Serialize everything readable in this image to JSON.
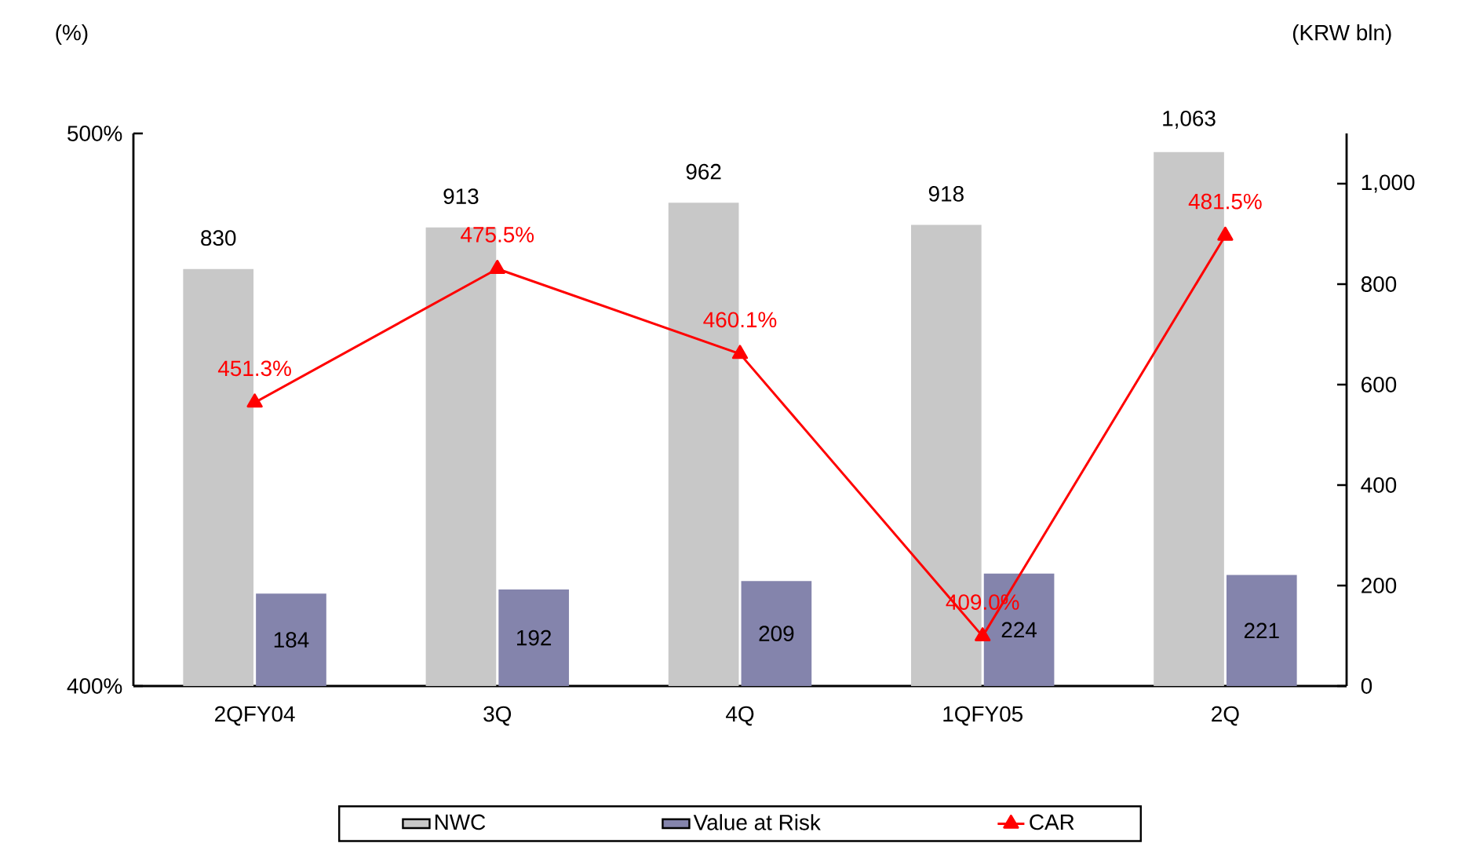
{
  "chart_data": {
    "type": "bar",
    "ylabel": "(%)",
    "y2label": "(KRW bln)",
    "categories": [
      "2QFY04",
      "3Q",
      "4Q",
      "1QFY05",
      "2Q"
    ],
    "ylim": [
      400,
      500
    ],
    "yticks": [
      {
        "value": 400,
        "label": "400%"
      },
      {
        "value": 500,
        "label": "500%"
      }
    ],
    "y2lim": [
      0,
      1100
    ],
    "y2ticks": [
      0,
      200,
      400,
      600,
      800,
      {
        "value": 1000,
        "label": "1,000"
      }
    ],
    "legend": "bottom",
    "series": [
      {
        "name": "NWC",
        "axis": "y2",
        "color": "#c8c8c8",
        "values": [
          830,
          913,
          962,
          918,
          1063
        ],
        "value_labels": [
          "830",
          "913",
          "962",
          "918",
          "1,063"
        ]
      },
      {
        "name": "Value at Risk",
        "axis": "y2",
        "color": "#8484ac",
        "values": [
          184,
          192,
          209,
          224,
          221
        ],
        "value_labels": [
          "184",
          "192",
          "209",
          "224",
          "221"
        ]
      },
      {
        "name": "CAR",
        "type": "line",
        "axis": "y",
        "color": "#ff0000",
        "marker": "triangle",
        "values": [
          451.3,
          475.5,
          460.1,
          409.0,
          481.5
        ],
        "value_labels": [
          "451.3%",
          "475.5%",
          "460.1%",
          "409.0%",
          "481.5%"
        ]
      }
    ]
  }
}
